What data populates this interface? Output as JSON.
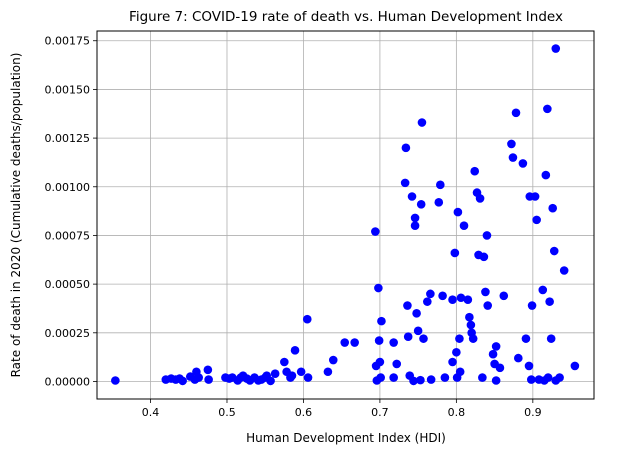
{
  "chart_data": {
    "type": "scatter",
    "title": "Figure 7: COVID-19 rate of death vs. Human Development Index",
    "xlabel": "Human Development Index (HDI)",
    "ylabel": "Rate of death in 2020 (Cumulative deaths/population)",
    "xlim": [
      0.33,
      0.98
    ],
    "ylim": [
      -9e-05,
      0.0018
    ],
    "xticks": [
      0.4,
      0.5,
      0.6,
      0.7,
      0.8,
      0.9
    ],
    "xtick_labels": [
      "0.4",
      "0.5",
      "0.6",
      "0.7",
      "0.8",
      "0.9"
    ],
    "yticks": [
      0.0,
      0.00025,
      0.0005,
      0.00075,
      0.001,
      0.00125,
      0.0015,
      0.00175
    ],
    "ytick_labels": [
      "0.00000",
      "0.00025",
      "0.00050",
      "0.00075",
      "0.00100",
      "0.00125",
      "0.00150",
      "0.00175"
    ],
    "grid": true,
    "marker_color": "#0000ff",
    "series": [
      {
        "points": [
          [
            0.354,
            5e-06
          ],
          [
            0.42,
            1e-05
          ],
          [
            0.427,
            1.5e-05
          ],
          [
            0.433,
            1e-05
          ],
          [
            0.438,
            1.5e-05
          ],
          [
            0.442,
            3e-06
          ],
          [
            0.452,
            2.5e-05
          ],
          [
            0.458,
            1e-05
          ],
          [
            0.46,
            5e-05
          ],
          [
            0.463,
            2e-05
          ],
          [
            0.475,
            6e-05
          ],
          [
            0.476,
            1e-05
          ],
          [
            0.498,
            2e-05
          ],
          [
            0.503,
            1.5e-05
          ],
          [
            0.507,
            2e-05
          ],
          [
            0.514,
            5e-06
          ],
          [
            0.518,
            2e-05
          ],
          [
            0.521,
            3e-05
          ],
          [
            0.526,
            1.5e-05
          ],
          [
            0.53,
            5e-06
          ],
          [
            0.536,
            2e-05
          ],
          [
            0.541,
            5e-06
          ],
          [
            0.545,
            1e-05
          ],
          [
            0.55,
            2e-05
          ],
          [
            0.552,
            3e-05
          ],
          [
            0.557,
            3e-06
          ],
          [
            0.563,
            4e-05
          ],
          [
            0.575,
            0.0001
          ],
          [
            0.578,
            5e-05
          ],
          [
            0.583,
            2e-05
          ],
          [
            0.585,
            3e-05
          ],
          [
            0.589,
            0.00016
          ],
          [
            0.597,
            5e-05
          ],
          [
            0.605,
            0.00032
          ],
          [
            0.606,
            2e-05
          ],
          [
            0.632,
            5e-05
          ],
          [
            0.639,
            0.00011
          ],
          [
            0.654,
            0.0002
          ],
          [
            0.667,
            0.0002
          ],
          [
            0.694,
            0.00077
          ],
          [
            0.695,
            8e-05
          ],
          [
            0.696,
            5e-06
          ],
          [
            0.698,
            0.00048
          ],
          [
            0.699,
            0.00021
          ],
          [
            0.7,
            0.0001
          ],
          [
            0.701,
            2e-05
          ],
          [
            0.702,
            0.00031
          ],
          [
            0.718,
            0.0002
          ],
          [
            0.718,
            2e-05
          ],
          [
            0.722,
            9e-05
          ],
          [
            0.733,
            0.00102
          ],
          [
            0.734,
            0.0012
          ],
          [
            0.736,
            0.00039
          ],
          [
            0.737,
            0.00023
          ],
          [
            0.739,
            3e-05
          ],
          [
            0.742,
            0.00095
          ],
          [
            0.744,
            3e-06
          ],
          [
            0.746,
            0.00084
          ],
          [
            0.746,
            0.0008
          ],
          [
            0.748,
            0.00035
          ],
          [
            0.75,
            0.00026
          ],
          [
            0.753,
            7e-06
          ],
          [
            0.754,
            0.00091
          ],
          [
            0.755,
            0.00133
          ],
          [
            0.757,
            0.00022
          ],
          [
            0.762,
            0.00041
          ],
          [
            0.766,
            0.00045
          ],
          [
            0.767,
            1e-05
          ],
          [
            0.777,
            0.00092
          ],
          [
            0.779,
            0.00101
          ],
          [
            0.782,
            0.00044
          ],
          [
            0.785,
            2e-05
          ],
          [
            0.795,
            0.00042
          ],
          [
            0.795,
            0.0001
          ],
          [
            0.798,
            0.00066
          ],
          [
            0.8,
            0.00015
          ],
          [
            0.801,
            2e-05
          ],
          [
            0.802,
            0.00087
          ],
          [
            0.804,
            0.00022
          ],
          [
            0.805,
            5e-05
          ],
          [
            0.806,
            0.00043
          ],
          [
            0.81,
            0.0008
          ],
          [
            0.815,
            0.00042
          ],
          [
            0.817,
            0.00033
          ],
          [
            0.819,
            0.00029
          ],
          [
            0.82,
            0.00025
          ],
          [
            0.822,
            0.00022
          ],
          [
            0.824,
            0.00108
          ],
          [
            0.827,
            0.00097
          ],
          [
            0.829,
            0.00065
          ],
          [
            0.831,
            0.00094
          ],
          [
            0.834,
            2e-05
          ],
          [
            0.836,
            0.00064
          ],
          [
            0.838,
            0.00046
          ],
          [
            0.84,
            0.00075
          ],
          [
            0.841,
            0.00039
          ],
          [
            0.848,
            0.00014
          ],
          [
            0.85,
            9e-05
          ],
          [
            0.852,
            5e-06
          ],
          [
            0.852,
            0.00018
          ],
          [
            0.857,
            7e-05
          ],
          [
            0.862,
            0.00044
          ],
          [
            0.872,
            0.00122
          ],
          [
            0.874,
            0.00115
          ],
          [
            0.878,
            0.00138
          ],
          [
            0.881,
            0.00012
          ],
          [
            0.887,
            0.00112
          ],
          [
            0.891,
            0.00022
          ],
          [
            0.895,
            8e-05
          ],
          [
            0.896,
            0.00095
          ],
          [
            0.898,
            1e-05
          ],
          [
            0.899,
            0.00039
          ],
          [
            0.903,
            0.00095
          ],
          [
            0.905,
            0.00083
          ],
          [
            0.908,
            1e-05
          ],
          [
            0.913,
            0.00047
          ],
          [
            0.915,
            5e-06
          ],
          [
            0.917,
            0.00106
          ],
          [
            0.919,
            0.0014
          ],
          [
            0.92,
            2e-05
          ],
          [
            0.922,
            0.00041
          ],
          [
            0.924,
            0.00022
          ],
          [
            0.926,
            0.00089
          ],
          [
            0.928,
            0.00067
          ],
          [
            0.93,
            0.00171
          ],
          [
            0.93,
            5e-06
          ],
          [
            0.935,
            2e-05
          ],
          [
            0.941,
            0.00057
          ],
          [
            0.955,
            8e-05
          ]
        ]
      }
    ]
  }
}
